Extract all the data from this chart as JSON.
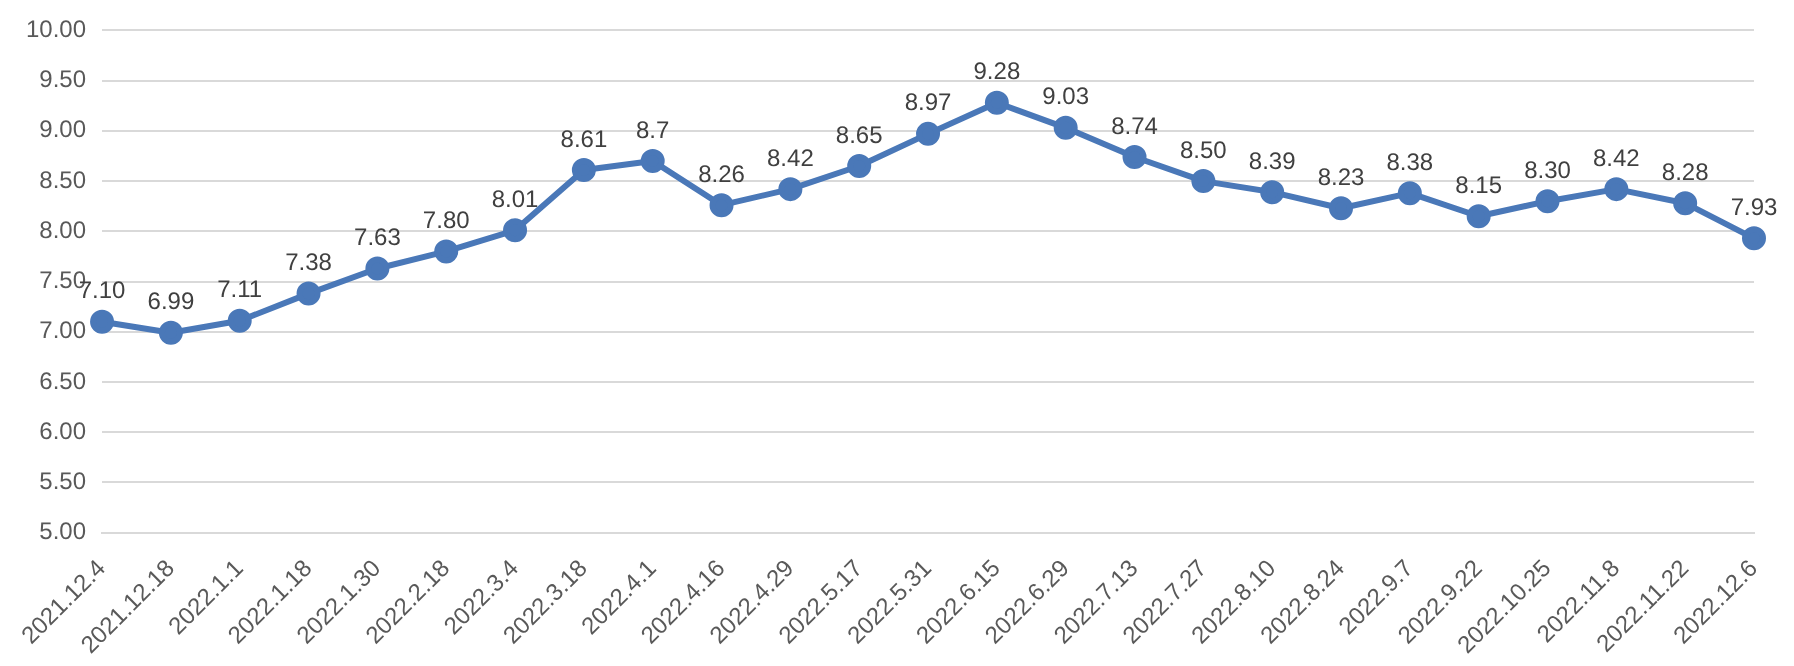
{
  "chart_data": {
    "type": "line",
    "categories": [
      "2021.12.4",
      "2021.12.18",
      "2022.1.1",
      "2022.1.18",
      "2022.1.30",
      "2022.2.18",
      "2022.3.4",
      "2022.3.18",
      "2022.4.1",
      "2022.4.16",
      "2022.4.29",
      "2022.5.17",
      "2022.5.31",
      "2022.6.15",
      "2022.6.29",
      "2022.7.13",
      "2022.7.27",
      "2022.8.10",
      "2022.8.24",
      "2022.9.7",
      "2022.9.22",
      "2022.10.25",
      "2022.11.8",
      "2022.11.22",
      "2022.12.6"
    ],
    "series": [
      {
        "color": "#4a78b8",
        "values": [
          7.1,
          6.99,
          7.11,
          7.38,
          7.63,
          7.8,
          8.01,
          8.61,
          8.7,
          8.26,
          8.42,
          8.65,
          8.97,
          9.28,
          9.03,
          8.74,
          8.5,
          8.39,
          8.23,
          8.38,
          8.15,
          8.3,
          8.42,
          8.28,
          7.93
        ],
        "value_labels": [
          "7.10",
          "6.99",
          "7.11",
          "7.38",
          "7.63",
          "7.80",
          "8.01",
          "8.61",
          "8.7",
          "8.26",
          "8.42",
          "8.65",
          "8.97",
          "9.28",
          "9.03",
          "8.74",
          "8.50",
          "8.39",
          "8.23",
          "8.38",
          "8.15",
          "8.30",
          "8.42",
          "8.28",
          "7.93"
        ]
      }
    ],
    "ylim": [
      5,
      10
    ],
    "yticks": [
      {
        "value": 5,
        "label": "5.00"
      },
      {
        "value": 5.5,
        "label": "5.50"
      },
      {
        "value": 6,
        "label": "6.00"
      },
      {
        "value": 6.5,
        "label": "6.50"
      },
      {
        "value": 7,
        "label": "7.00"
      },
      {
        "value": 7.5,
        "label": "7.50"
      },
      {
        "value": 8,
        "label": "8.00"
      },
      {
        "value": 8.5,
        "label": "8.50"
      },
      {
        "value": 9,
        "label": "9.00"
      },
      {
        "value": 9.5,
        "label": "9.50"
      },
      {
        "value": 10,
        "label": "10.00"
      }
    ],
    "grid": "y",
    "marker": "circle",
    "line_style": "solid",
    "legend": false
  }
}
